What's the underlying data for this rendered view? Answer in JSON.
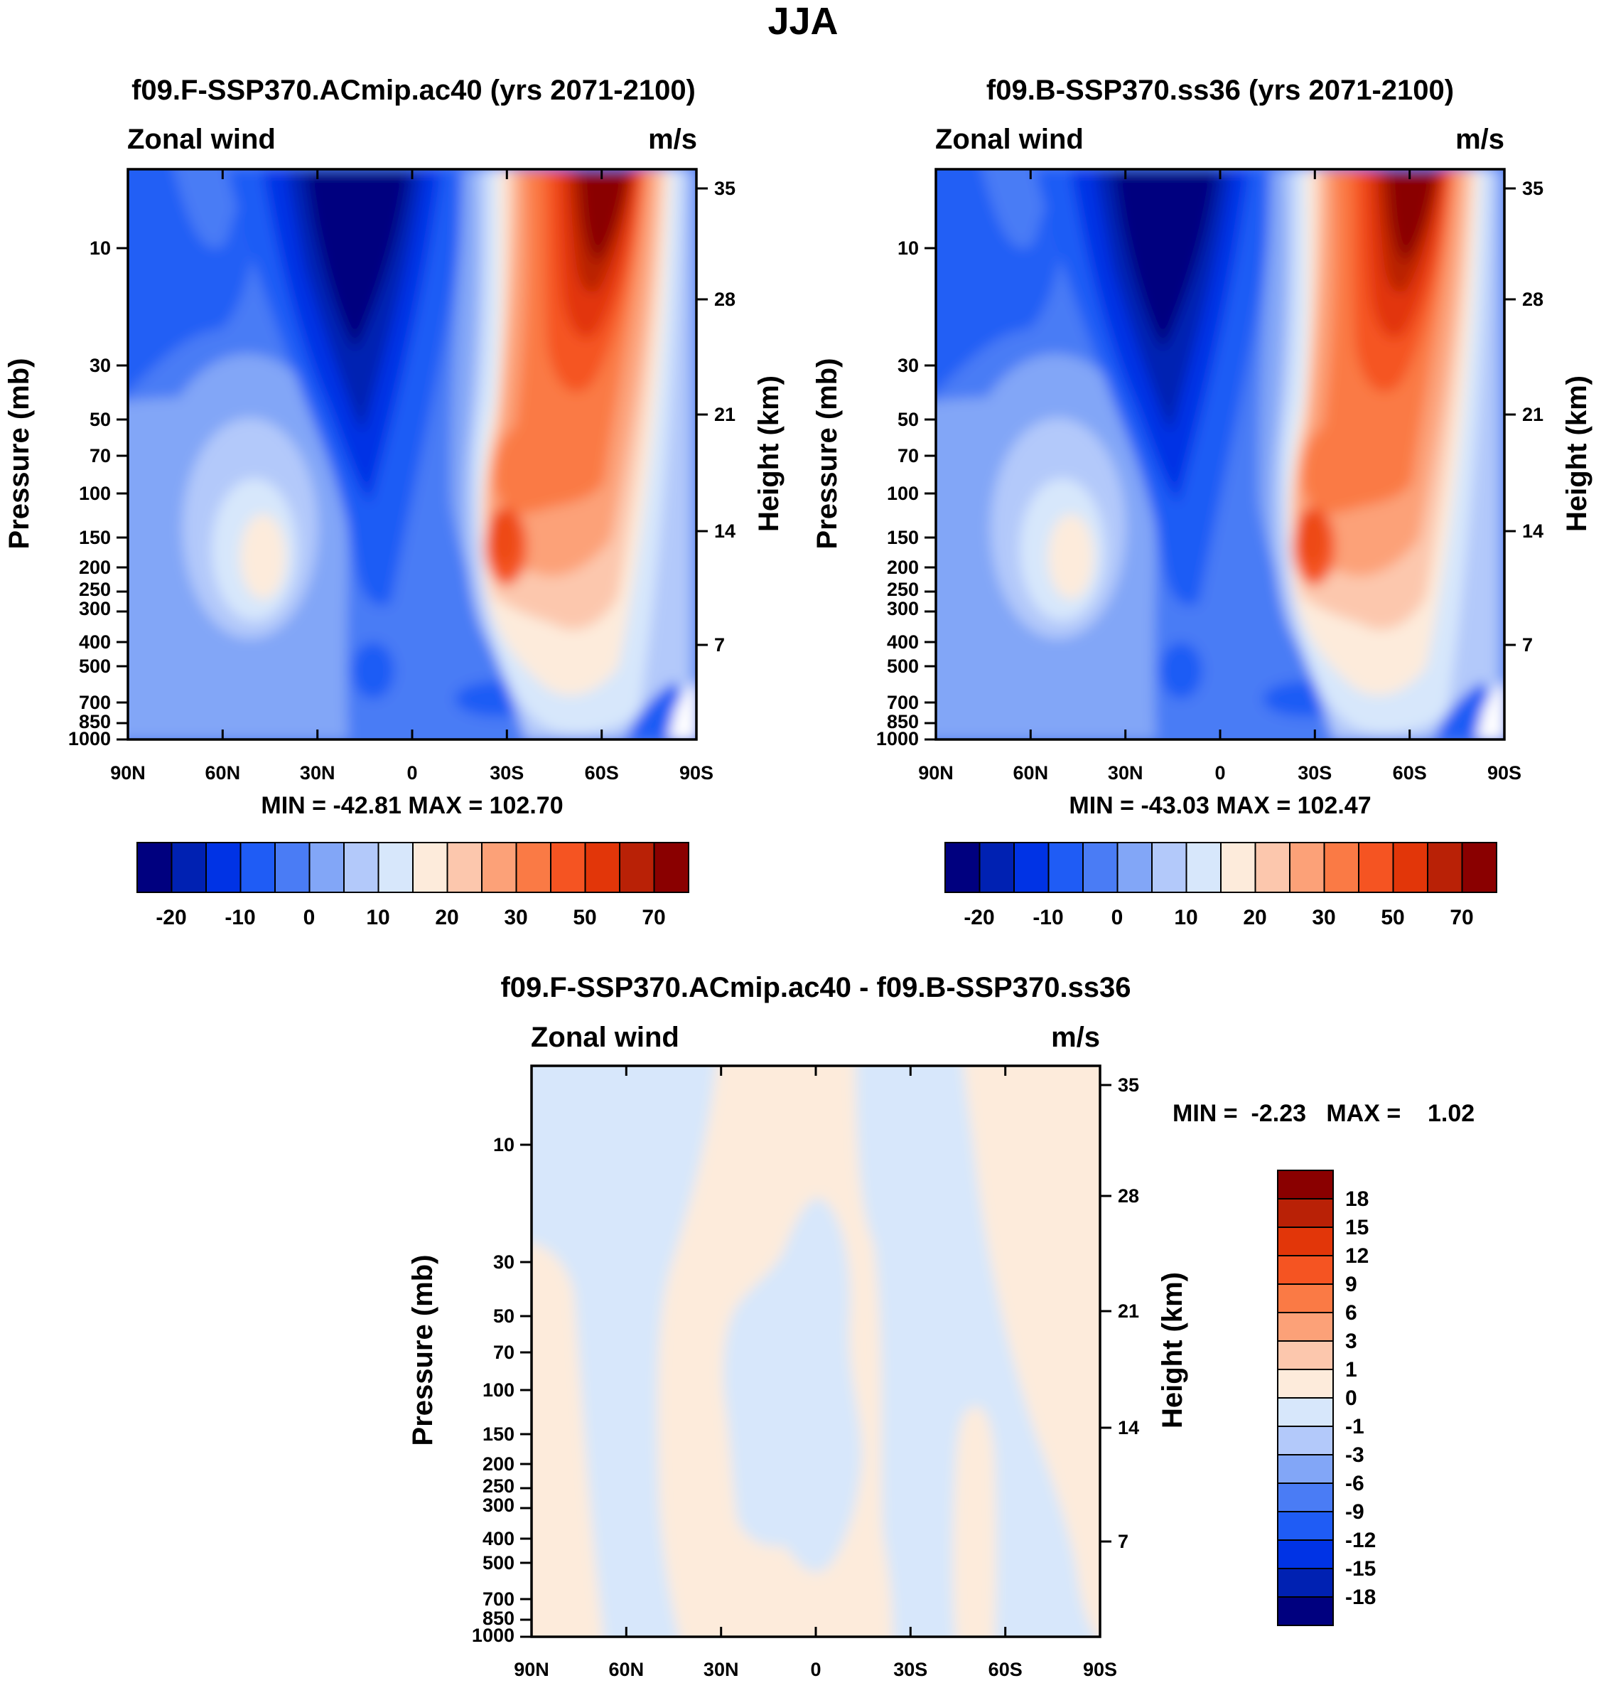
{
  "page_title": "JJA",
  "colors": {
    "abs_scale": [
      "#00007f",
      "#0021b2",
      "#0033e5",
      "#1f5cf5",
      "#4a7cf5",
      "#82a6f7",
      "#b3c9fa",
      "#d7e7fb",
      "#fdebdb",
      "#fcc7ad",
      "#fca178",
      "#fa7a45",
      "#f55422",
      "#e23609",
      "#b92106",
      "#8a0000"
    ],
    "diff_scale": [
      "#00007f",
      "#0021b2",
      "#0033e5",
      "#1f5cf5",
      "#4a7cf5",
      "#82a6f7",
      "#b3c9fa",
      "#d7e7fb",
      "#fdebdb",
      "#fcc7ad",
      "#fca178",
      "#fa7a45",
      "#f55422",
      "#e23609",
      "#b92106",
      "#8a0000"
    ]
  },
  "chart_data": [
    {
      "type": "heatmap",
      "title": "f09.F-SSP370.ACmip.ac40 (yrs 2071-2100)",
      "left_label": "Zonal wind",
      "right_label": "m/s",
      "ylabel": "Pressure (mb)",
      "ylabel_right": "Height (km)",
      "x_ticks": [
        "90N",
        "60N",
        "30N",
        "0",
        "30S",
        "60S",
        "90S"
      ],
      "y_ticks": [
        "10",
        "30",
        "50",
        "70",
        "100",
        "150",
        "200",
        "250",
        "300",
        "400",
        "500",
        "700",
        "850",
        "1000"
      ],
      "y_right_ticks": [
        "35",
        "28",
        "21",
        "14",
        "7"
      ],
      "stats": "MIN = -42.81   MAX = 102.70",
      "min": -42.81,
      "max": 102.7,
      "colorbar_labels": [
        "-20",
        "-10",
        "0",
        "10",
        "20",
        "30",
        "50",
        "70"
      ],
      "colorbar_levels": [
        -25,
        -20,
        -15,
        -10,
        -5,
        0,
        5,
        10,
        15,
        20,
        25,
        30,
        40,
        50,
        60,
        70,
        80
      ]
    },
    {
      "type": "heatmap",
      "title": "f09.B-SSP370.ss36 (yrs 2071-2100)",
      "left_label": "Zonal wind",
      "right_label": "m/s",
      "ylabel": "Pressure (mb)",
      "ylabel_right": "Height (km)",
      "x_ticks": [
        "90N",
        "60N",
        "30N",
        "0",
        "30S",
        "60S",
        "90S"
      ],
      "y_ticks": [
        "10",
        "30",
        "50",
        "70",
        "100",
        "150",
        "200",
        "250",
        "300",
        "400",
        "500",
        "700",
        "850",
        "1000"
      ],
      "y_right_ticks": [
        "35",
        "28",
        "21",
        "14",
        "7"
      ],
      "stats": "MIN = -43.03   MAX = 102.47",
      "min": -43.03,
      "max": 102.47,
      "colorbar_labels": [
        "-20",
        "-10",
        "0",
        "10",
        "20",
        "30",
        "50",
        "70"
      ],
      "colorbar_levels": [
        -25,
        -20,
        -15,
        -10,
        -5,
        0,
        5,
        10,
        15,
        20,
        25,
        30,
        40,
        50,
        60,
        70,
        80
      ]
    },
    {
      "type": "heatmap",
      "title": "f09.F-SSP370.ACmip.ac40 - f09.B-SSP370.ss36",
      "left_label": "Zonal wind",
      "right_label": "m/s",
      "ylabel": "Pressure (mb)",
      "ylabel_right": "Height (km)",
      "x_ticks": [
        "90N",
        "60N",
        "30N",
        "0",
        "30S",
        "60S",
        "90S"
      ],
      "y_ticks": [
        "10",
        "30",
        "50",
        "70",
        "100",
        "150",
        "200",
        "250",
        "300",
        "400",
        "500",
        "700",
        "850",
        "1000"
      ],
      "y_right_ticks": [
        "35",
        "28",
        "21",
        "14",
        "7"
      ],
      "stats": "MIN =  -2.23   MAX =    1.02",
      "min": -2.23,
      "max": 1.02,
      "colorbar_labels": [
        "18",
        "15",
        "12",
        "9",
        "6",
        "3",
        "1",
        "0",
        "-1",
        "-3",
        "-6",
        "-9",
        "-12",
        "-15",
        "-18"
      ],
      "colorbar_levels": [
        -18,
        -15,
        -12,
        -9,
        -6,
        -3,
        -1,
        0,
        1,
        3,
        6,
        9,
        12,
        15,
        18
      ]
    }
  ]
}
